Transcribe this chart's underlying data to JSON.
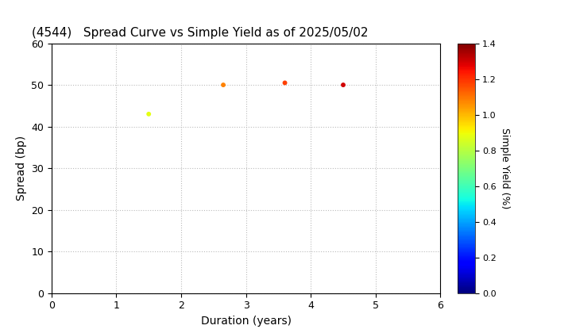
{
  "title": "(4544)   Spread Curve vs Simple Yield as of 2025/05/02",
  "xlabel": "Duration (years)",
  "ylabel": "Spread (bp)",
  "colorbar_label": "Simple Yield (%)",
  "xlim": [
    0,
    6
  ],
  "ylim": [
    0,
    60
  ],
  "xticks": [
    0,
    1,
    2,
    3,
    4,
    5,
    6
  ],
  "yticks": [
    0,
    10,
    20,
    30,
    40,
    50,
    60
  ],
  "colormap": "jet",
  "clim": [
    0.0,
    1.4
  ],
  "clim_ticks": [
    0.0,
    0.2,
    0.4,
    0.6,
    0.8,
    1.0,
    1.2,
    1.4
  ],
  "points": [
    {
      "duration": 1.5,
      "spread": 43,
      "simple_yield": 0.88
    },
    {
      "duration": 2.65,
      "spread": 50,
      "simple_yield": 1.08
    },
    {
      "duration": 3.6,
      "spread": 50.5,
      "simple_yield": 1.18
    },
    {
      "duration": 4.5,
      "spread": 50,
      "simple_yield": 1.3
    }
  ],
  "marker_size": 18,
  "background_color": "#ffffff",
  "grid_color": "#bbbbbb",
  "grid_style": "dotted",
  "title_fontsize": 11,
  "axis_label_fontsize": 10,
  "tick_fontsize": 9,
  "colorbar_tick_fontsize": 8,
  "colorbar_label_fontsize": 9
}
